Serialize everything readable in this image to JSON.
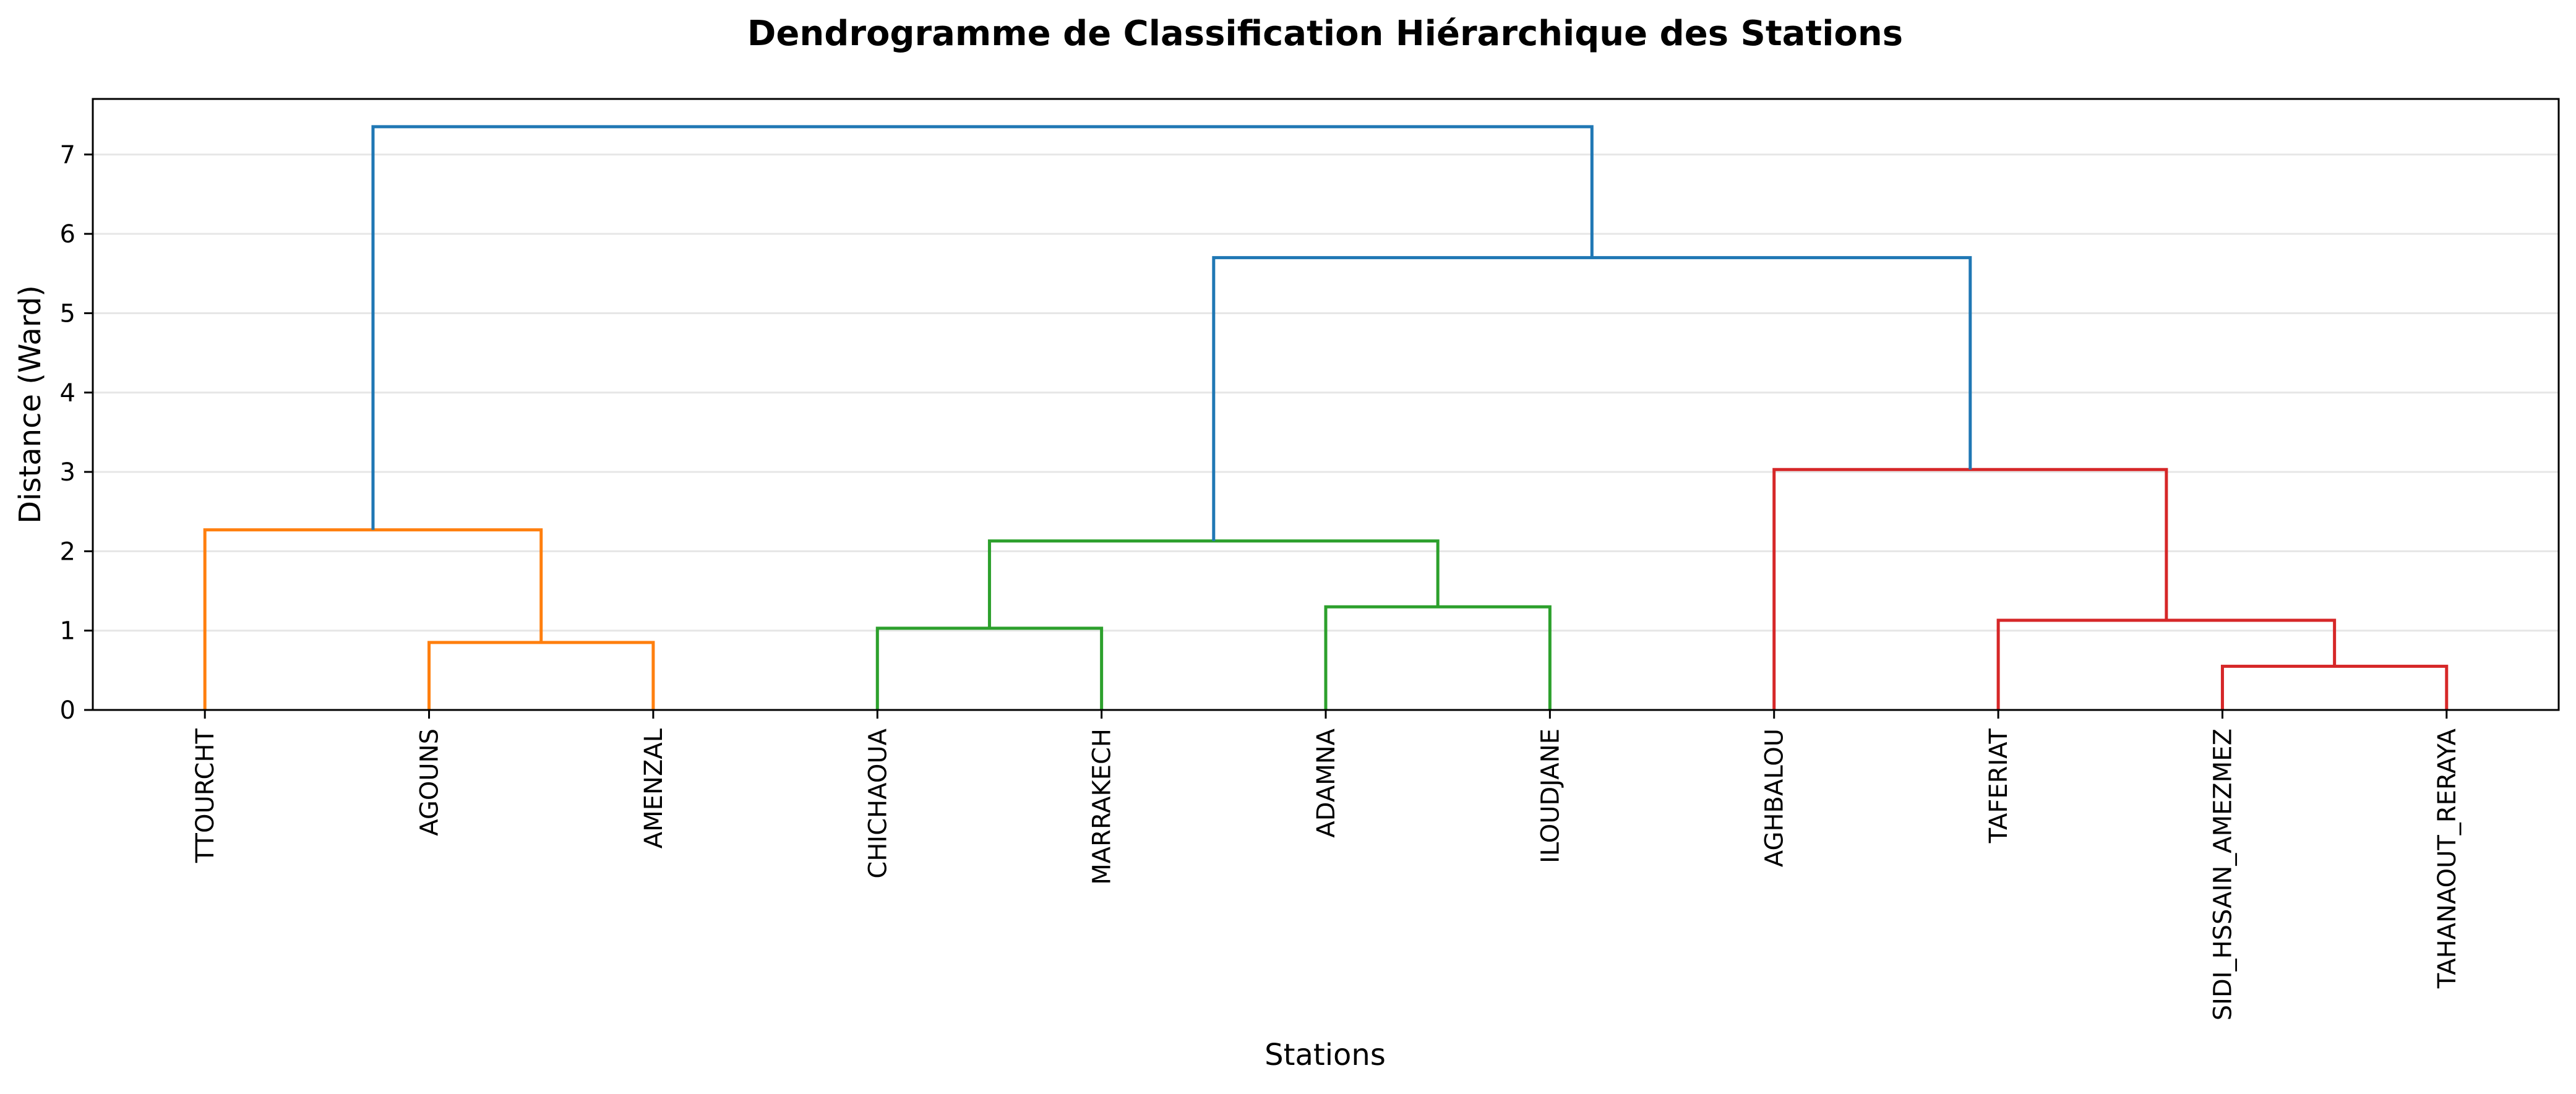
{
  "chart_data": {
    "type": "dendrogram",
    "title": "Dendrogramme de Classification Hiérarchique des Stations",
    "xlabel": "Stations",
    "ylabel": "Distance (Ward)",
    "ylim": [
      0,
      7.7
    ],
    "yticks": [
      "0",
      "1",
      "2",
      "3",
      "4",
      "5",
      "6",
      "7"
    ],
    "grid": "horizontal",
    "leaves": [
      "TTOURCHT",
      "AGOUNS",
      "AMENZAL",
      "CHICHAOUA",
      "MARRAKECH",
      "ADAMNA",
      "ILOUDJANE",
      "AGHBALOU",
      "TAFERIAT",
      "SIDI_HSSAIN_AMEZMEZ",
      "TAHANAOUT_RERAYA"
    ],
    "merges": [
      {
        "left": "AGOUNS",
        "right": "AMENZAL",
        "height": 0.85,
        "color": "#ff7f0e"
      },
      {
        "left": "TTOURCHT",
        "right": "m0",
        "height": 2.27,
        "color": "#ff7f0e"
      },
      {
        "left": "CHICHAOUA",
        "right": "MARRAKECH",
        "height": 1.03,
        "color": "#2ca02c"
      },
      {
        "left": "ADAMNA",
        "right": "ILOUDJANE",
        "height": 1.3,
        "color": "#2ca02c"
      },
      {
        "left": "m2",
        "right": "m3",
        "height": 2.13,
        "color": "#2ca02c"
      },
      {
        "left": "SIDI_HSSAIN_AMEZMEZ",
        "right": "TAHANAOUT_RERAYA",
        "height": 0.55,
        "color": "#d62728"
      },
      {
        "left": "TAFERIAT",
        "right": "m5",
        "height": 1.13,
        "color": "#d62728"
      },
      {
        "left": "AGHBALOU",
        "right": "m6",
        "height": 3.03,
        "color": "#d62728"
      },
      {
        "left": "m4",
        "right": "m7",
        "height": 5.7,
        "color": "#1f77b4"
      },
      {
        "left": "m1",
        "right": "m8",
        "height": 7.35,
        "color": "#1f77b4"
      }
    ]
  }
}
